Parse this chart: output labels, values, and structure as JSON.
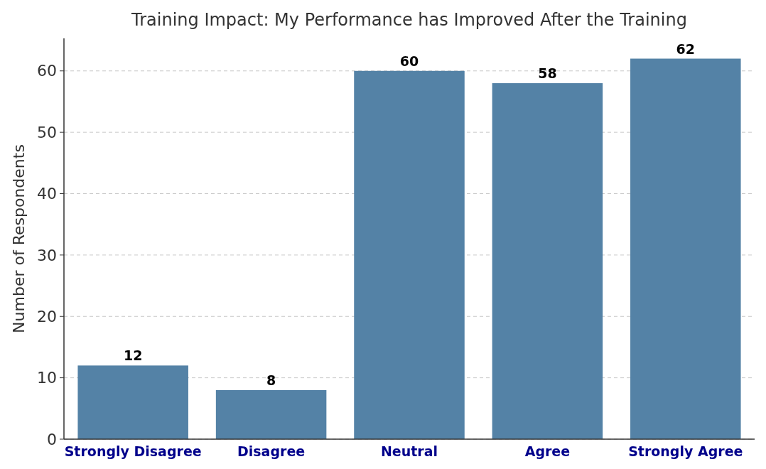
{
  "chart_data": {
    "type": "bar",
    "title": "Training Impact: My Performance has Improved After the Training",
    "ylabel": "Number of Respondents",
    "categories": [
      "Strongly Disagree",
      "Disagree",
      "Neutral",
      "Agree",
      "Strongly Agree"
    ],
    "values": [
      12,
      8,
      60,
      58,
      62
    ],
    "color": "#5482a6",
    "ylim": [
      0,
      65.3
    ],
    "yticks": [
      0,
      10,
      20,
      30,
      40,
      50,
      60
    ],
    "grid": "y",
    "data_labels": true
  }
}
